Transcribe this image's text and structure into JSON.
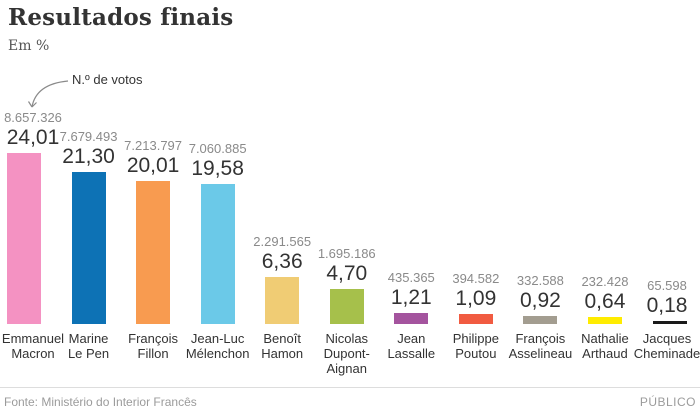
{
  "header": {
    "title": "Resultados finais",
    "subtitle": "Em %"
  },
  "annotation": {
    "label": "N.º de votos"
  },
  "chart_data": {
    "type": "bar",
    "title": "Resultados finais",
    "ylabel": "Em %",
    "unit": "percent",
    "grid": false,
    "legend": "none",
    "ylim": [
      0,
      25
    ],
    "candidates": [
      {
        "name": "Emmanuel Macron",
        "name_lines": [
          "Emmanuel",
          "Macron"
        ],
        "votes": "8.657.326",
        "pct_label": "24,01",
        "value": 24.01,
        "color": "#F492C2"
      },
      {
        "name": "Marine Le Pen",
        "name_lines": [
          "Marine",
          "Le Pen"
        ],
        "votes": "7.679.493",
        "pct_label": "21,30",
        "value": 21.3,
        "color": "#0D72B5"
      },
      {
        "name": "François Fillon",
        "name_lines": [
          "François",
          "Fillon"
        ],
        "votes": "7.213.797",
        "pct_label": "20,01",
        "value": 20.01,
        "color": "#F89B50"
      },
      {
        "name": "Jean-Luc Mélenchon",
        "name_lines": [
          "Jean-Luc",
          "Mélenchon"
        ],
        "votes": "7.060.885",
        "pct_label": "19,58",
        "value": 19.58,
        "color": "#6BC9E8"
      },
      {
        "name": "Benoît Hamon",
        "name_lines": [
          "Benoît",
          "Hamon"
        ],
        "votes": "2.291.565",
        "pct_label": "6,36",
        "value": 6.36,
        "color": "#F0CC74"
      },
      {
        "name": "Nicolas Dupont-Aignan",
        "name_lines": [
          "Nicolas",
          "Dupont-",
          "Aignan"
        ],
        "votes": "1.695.186",
        "pct_label": "4,70",
        "value": 4.7,
        "color": "#A6C04B"
      },
      {
        "name": "Jean Lassalle",
        "name_lines": [
          "Jean",
          "Lassalle"
        ],
        "votes": "435.365",
        "pct_label": "1,21",
        "value": 1.21,
        "color": "#A4549E"
      },
      {
        "name": "Philippe Poutou",
        "name_lines": [
          "Philippe",
          "Poutou"
        ],
        "votes": "394.582",
        "pct_label": "1,09",
        "value": 1.09,
        "color": "#F15B41"
      },
      {
        "name": "François Asselineau",
        "name_lines": [
          "François",
          "Asselineau"
        ],
        "votes": "332.588",
        "pct_label": "0,92",
        "value": 0.92,
        "color": "#A39D90"
      },
      {
        "name": "Nathalie Arthaud",
        "name_lines": [
          "Nathalie",
          "Arthaud"
        ],
        "votes": "232.428",
        "pct_label": "0,64",
        "value": 0.64,
        "color": "#FFEC00"
      },
      {
        "name": "Jacques Cheminade",
        "name_lines": [
          "Jacques",
          "Cheminade"
        ],
        "votes": "65.598",
        "pct_label": "0,18",
        "value": 0.18,
        "color": "#1A1A1A"
      }
    ]
  },
  "footer": {
    "source": "Fonte: Ministério do Interior Francês",
    "brand": "PÚBLICO"
  }
}
